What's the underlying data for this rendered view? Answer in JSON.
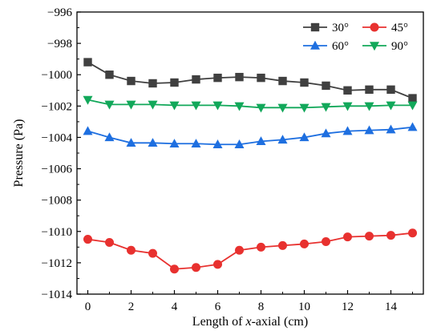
{
  "chart_data": {
    "type": "line",
    "xlabel_parts": [
      {
        "text": "Length of ",
        "italic": false
      },
      {
        "text": "x",
        "italic": true
      },
      {
        "text": "-axial (cm)",
        "italic": false
      }
    ],
    "ylabel": "Pressure (Pa)",
    "xlim": [
      -0.5,
      15.5
    ],
    "ylim": [
      -1014,
      -996
    ],
    "xticks": [
      0,
      2,
      4,
      6,
      8,
      10,
      12,
      14
    ],
    "yticks": [
      -1014,
      -1012,
      -1010,
      -1008,
      -1006,
      -1004,
      -1002,
      -1000,
      -998,
      -996
    ],
    "grid": false,
    "legend_position": "top-right",
    "legend_columns": 2,
    "x": [
      0,
      1,
      2,
      3,
      4,
      5,
      6,
      7,
      8,
      9,
      10,
      11,
      12,
      13,
      14,
      15
    ],
    "series": [
      {
        "name": "30°",
        "color": "#404040",
        "marker": "square",
        "values": [
          -999.2,
          -1000.0,
          -1000.4,
          -1000.55,
          -1000.5,
          -1000.3,
          -1000.2,
          -1000.15,
          -1000.2,
          -1000.4,
          -1000.5,
          -1000.7,
          -1001.0,
          -1000.95,
          -1000.95,
          -1001.5
        ]
      },
      {
        "name": "45°",
        "color": "#e8312f",
        "marker": "circle",
        "values": [
          -1010.5,
          -1010.7,
          -1011.2,
          -1011.4,
          -1012.4,
          -1012.3,
          -1012.1,
          -1011.2,
          -1011.0,
          -1010.9,
          -1010.8,
          -1010.65,
          -1010.35,
          -1010.3,
          -1010.25,
          -1010.1
        ]
      },
      {
        "name": "60°",
        "color": "#1e6fe0",
        "marker": "triangle-up",
        "values": [
          -1003.6,
          -1004.0,
          -1004.35,
          -1004.35,
          -1004.4,
          -1004.4,
          -1004.45,
          -1004.45,
          -1004.25,
          -1004.15,
          -1004.0,
          -1003.75,
          -1003.6,
          -1003.55,
          -1003.5,
          -1003.35
        ]
      },
      {
        "name": "90°",
        "color": "#12a85a",
        "marker": "triangle-down",
        "values": [
          -1001.6,
          -1001.9,
          -1001.9,
          -1001.9,
          -1001.95,
          -1001.95,
          -1001.95,
          -1002.0,
          -1002.1,
          -1002.1,
          -1002.1,
          -1002.05,
          -1002.0,
          -1002.0,
          -1001.95,
          -1001.95
        ]
      }
    ]
  }
}
